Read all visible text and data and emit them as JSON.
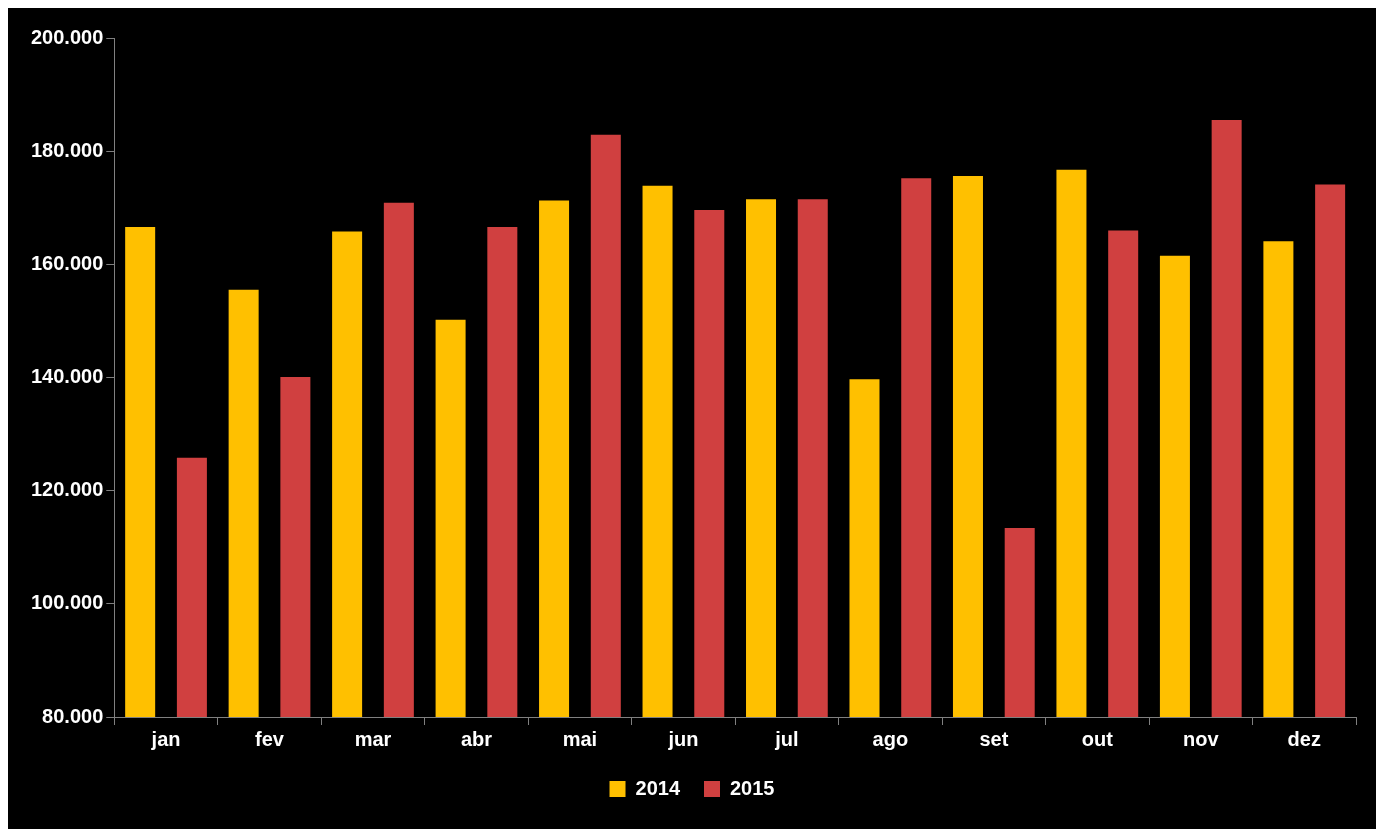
{
  "chart_data": {
    "type": "bar",
    "categories": [
      "jan",
      "fev",
      "mar",
      "abr",
      "mai",
      "jun",
      "jul",
      "ago",
      "set",
      "out",
      "nov",
      "dez"
    ],
    "series": [
      {
        "name": "2014",
        "color": "#ffc000",
        "values": [
          166600,
          155500,
          165800,
          150200,
          171300,
          173900,
          171500,
          139700,
          175600,
          176700,
          161500,
          164100
        ]
      },
      {
        "name": "2015",
        "color": "#d04040",
        "values": [
          125800,
          140100,
          170900,
          166600,
          182900,
          169600,
          171500,
          175200,
          113400,
          166000,
          185500,
          174100
        ]
      }
    ],
    "ylim": [
      80000,
      200000
    ],
    "yticks": [
      {
        "value": 80000,
        "label": "80.000"
      },
      {
        "value": 100000,
        "label": "100.000"
      },
      {
        "value": 120000,
        "label": "120.000"
      },
      {
        "value": 140000,
        "label": "140.000"
      },
      {
        "value": 160000,
        "label": "160.000"
      },
      {
        "value": 180000,
        "label": "180.000"
      },
      {
        "value": 200000,
        "label": "200.000"
      }
    ],
    "grid": false,
    "legend": "bottom"
  }
}
